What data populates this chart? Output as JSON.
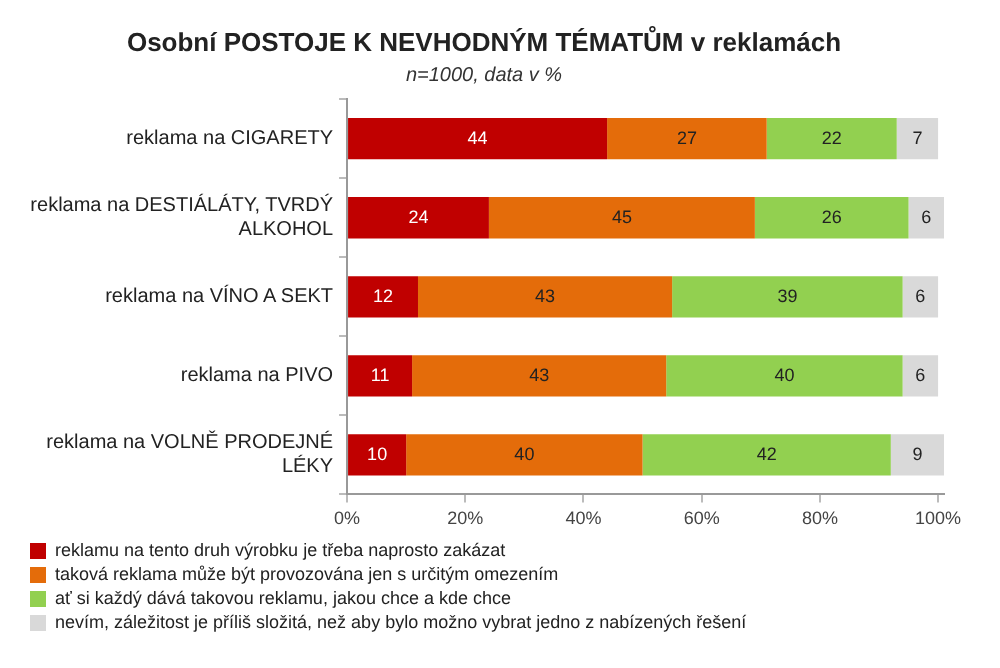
{
  "chart_data": {
    "type": "bar",
    "orientation": "horizontal",
    "stacked": true,
    "title": "Osobní POSTOJE K NEVHODNÝM TÉMATŮM v reklamách",
    "subtitle": "n=1000, data v %",
    "categories": [
      "reklama na CIGARETY",
      "reklama na DESTIÁLÁTY, TVRDÝ ALKOHOL",
      "reklama na VÍNO A SEKT",
      "reklama na PIVO",
      "reklama na VOLNĚ PRODEJNÉ LÉKY"
    ],
    "series": [
      {
        "name": "reklamu na tento druh výrobku je třeba naprosto zakázat",
        "color": "#c00000",
        "values": [
          44,
          24,
          12,
          11,
          10
        ]
      },
      {
        "name": "taková reklama může být provozována jen s určitým omezením",
        "color": "#e46c0a",
        "values": [
          27,
          45,
          43,
          43,
          40
        ]
      },
      {
        "name": "ať si každý dává takovou reklamu, jakou chce a kde chce",
        "color": "#92d050",
        "values": [
          22,
          26,
          39,
          40,
          42
        ]
      },
      {
        "name": "nevím, záležitost je příliš složitá, než aby bylo možno vybrat jedno z nabízených řešení",
        "color": "#d9d9d9",
        "values": [
          7,
          6,
          6,
          6,
          9
        ]
      }
    ],
    "xlim": [
      0,
      101
    ],
    "xticks": [
      {
        "value": 0,
        "label": "0%"
      },
      {
        "value": 20,
        "label": "20%"
      },
      {
        "value": 40,
        "label": "40%"
      },
      {
        "value": 60,
        "label": "60%"
      },
      {
        "value": 80,
        "label": "80%"
      },
      {
        "value": 100,
        "label": "100%"
      }
    ],
    "grid": false,
    "legend": "bottom",
    "data_labels": true
  }
}
